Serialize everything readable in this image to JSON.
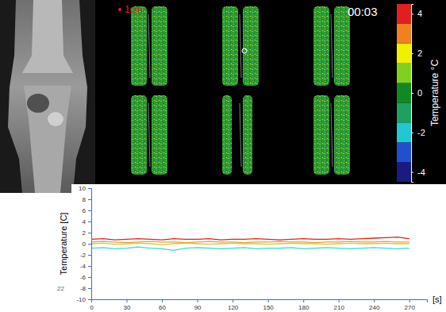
{
  "chart_data": [
    {
      "type": "line",
      "y_label": "Temperature [C]",
      "x_label": "[s]",
      "x": [
        0,
        10,
        20,
        30,
        40,
        50,
        60,
        70,
        80,
        90,
        100,
        110,
        120,
        130,
        140,
        150,
        160,
        170,
        180,
        190,
        200,
        210,
        220,
        230,
        240,
        250,
        260,
        270
      ],
      "series": [
        {
          "color": "#e02020",
          "values": [
            0.8,
            0.9,
            0.7,
            0.8,
            0.9,
            0.8,
            0.7,
            0.9,
            0.8,
            0.8,
            0.9,
            0.7,
            0.8,
            0.8,
            0.9,
            0.8,
            0.7,
            0.8,
            0.9,
            0.8,
            0.8,
            0.9,
            0.8,
            0.9,
            1.0,
            1.1,
            1.2,
            0.9
          ]
        },
        {
          "color": "#f0a020",
          "values": [
            0.3,
            0.4,
            0.3,
            0.2,
            0.3,
            0.4,
            0.3,
            0.3,
            0.2,
            0.3,
            0.4,
            0.3,
            0.3,
            0.2,
            0.3,
            0.3,
            0.4,
            0.3,
            0.3,
            0.2,
            0.3,
            0.3,
            0.4,
            0.3,
            0.3,
            0.4,
            0.3,
            0.3
          ]
        },
        {
          "color": "#c8d040",
          "values": [
            0.0,
            0.1,
            -0.1,
            0.0,
            0.1,
            0.0,
            -0.2,
            0.0,
            0.1,
            0.0,
            -0.1,
            0.0,
            0.1,
            0.0,
            0.0,
            -0.1,
            0.0,
            0.1,
            0.0,
            0.0,
            -0.1,
            0.0,
            0.1,
            0.0,
            0.0,
            0.1,
            0.0,
            0.0
          ]
        },
        {
          "color": "#30d8e0",
          "values": [
            -0.8,
            -0.7,
            -0.9,
            -0.8,
            -0.6,
            -0.8,
            -0.9,
            -1.2,
            -0.8,
            -0.7,
            -0.8,
            -0.9,
            -0.8,
            -0.7,
            -0.9,
            -0.8,
            -0.8,
            -0.7,
            -0.9,
            -0.8,
            -0.7,
            -0.8,
            -0.9,
            -0.8,
            -0.7,
            -0.8,
            -0.9,
            -0.8
          ]
        }
      ],
      "xlim": [
        0,
        285
      ],
      "xticks": [
        0,
        30,
        60,
        90,
        120,
        150,
        180,
        210,
        240,
        270
      ],
      "ylim": [
        -10,
        10
      ],
      "yticks": [
        -10,
        -8,
        -6,
        -4,
        -2,
        0,
        2,
        4,
        6,
        8,
        10
      ],
      "grid": false
    },
    {
      "type": "colorbar",
      "title": "Temperature °C",
      "bins": [
        -4.5,
        -3.5,
        -2.5,
        -1.5,
        -0.5,
        0.5,
        1.5,
        2.5,
        3.5,
        4.5
      ],
      "colors": [
        "#1a1a80",
        "#2050d0",
        "#20c8d0",
        "#20a060",
        "#108a20",
        "#80d020",
        "#f0f000",
        "#f08020",
        "#e02020"
      ],
      "ylim": [
        -4.5,
        4.5
      ],
      "yticks": [
        -4,
        -2,
        0,
        2,
        4
      ]
    }
  ],
  "scale_label": "1cm",
  "timestamp": "00:03",
  "slide_number": "22"
}
